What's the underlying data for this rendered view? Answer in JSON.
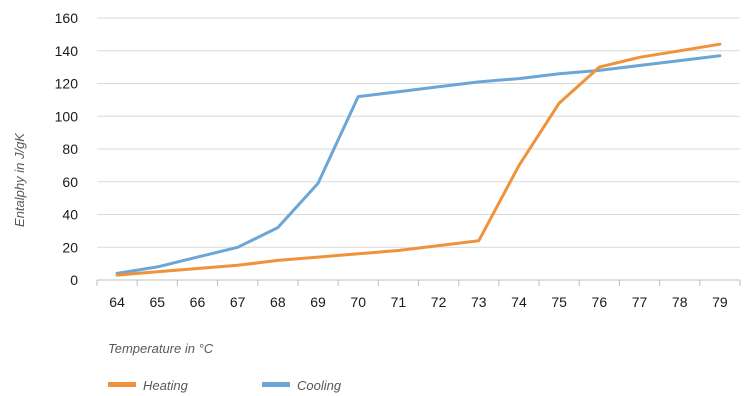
{
  "chart_data": {
    "type": "line",
    "title": "",
    "xlabel": "Temperature in °C",
    "ylabel": "Entalphy in J/gK",
    "x": [
      64,
      65,
      66,
      67,
      68,
      69,
      70,
      71,
      72,
      73,
      74,
      75,
      76,
      77,
      78,
      79
    ],
    "xticks": [
      "64",
      "65",
      "66",
      "67",
      "68",
      "69",
      "70",
      "71",
      "72",
      "73",
      "74",
      "75",
      "76",
      "77",
      "78",
      "79"
    ],
    "ylim": [
      0,
      160
    ],
    "yticks": [
      "0",
      "20",
      "40",
      "60",
      "80",
      "100",
      "120",
      "140",
      "160"
    ],
    "grid": "horizontal",
    "legend_position": "bottom-left",
    "series": [
      {
        "name": "Heating",
        "color": "#F0923B",
        "values": [
          3,
          5,
          7,
          9,
          12,
          14,
          16,
          18,
          21,
          24,
          70,
          108,
          130,
          136,
          140,
          144
        ]
      },
      {
        "name": "Cooling",
        "color": "#6BA6D6",
        "values": [
          4,
          8,
          14,
          20,
          32,
          59,
          112,
          115,
          118,
          121,
          123,
          126,
          128,
          131,
          134,
          137
        ]
      }
    ]
  }
}
